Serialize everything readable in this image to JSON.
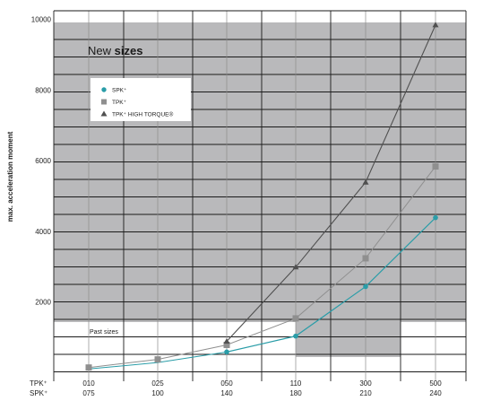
{
  "chart_data": {
    "type": "line",
    "title": "",
    "ylabel": "max. acceleration moment",
    "xlabel": "",
    "ylim": [
      0,
      10000
    ],
    "yticks": [
      2000,
      4000,
      6000,
      8000,
      10000
    ],
    "categories": [
      {
        "tpk": "010",
        "spk": "075"
      },
      {
        "tpk": "025",
        "spk": "100"
      },
      {
        "tpk": "050",
        "spk": "140"
      },
      {
        "tpk": "110",
        "spk": "180"
      },
      {
        "tpk": "300",
        "spk": "210"
      },
      {
        "tpk": "500",
        "spk": "240"
      }
    ],
    "row_labels": {
      "tpk": "TPK⁺",
      "spk": "SPK⁺"
    },
    "series": [
      {
        "name": "SPK⁺",
        "marker": "circle",
        "color": "#2a9da8",
        "values": [
          null,
          null,
          600,
          1050,
          2450,
          4400
        ]
      },
      {
        "name": "TPK⁺",
        "marker": "square",
        "color": "#8f8f8f",
        "values": [
          160,
          390,
          800,
          1550,
          3250,
          5850
        ]
      },
      {
        "name": "TPK⁺ HIGH TORQUE®",
        "marker": "triangle",
        "color": "#505050",
        "values": [
          null,
          null,
          900,
          3000,
          5400,
          9850
        ]
      }
    ],
    "pre_spk_curve": [
      120,
      300,
      600
    ],
    "legend_position": "top-left",
    "grid": true,
    "annotations": {
      "new_sizes_light": "New ",
      "new_sizes_bold": "sizes",
      "past_sizes": "Past sizes"
    }
  },
  "colors": {
    "shade": "#b9b9bb",
    "grid_dark": "#1a1a1a",
    "grid_light": "#8c8c8c",
    "spk": "#2a9da8",
    "tpk": "#8f8f8f",
    "tpk_ht": "#505050"
  }
}
